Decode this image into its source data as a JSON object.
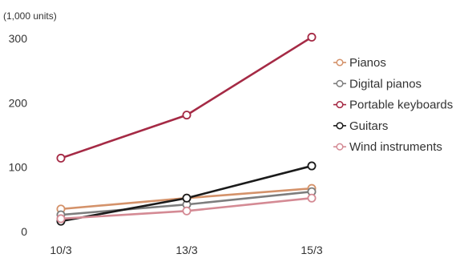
{
  "chart_data": {
    "type": "line",
    "unit_label": "(1,000 units)",
    "categories": [
      "10/3",
      "13/3",
      "15/3"
    ],
    "y_ticks": [
      0,
      100,
      200,
      300
    ],
    "ylim": [
      0,
      300
    ],
    "grid": false,
    "legend_position": "right",
    "series": [
      {
        "name": "Pianos",
        "color": "#d4926a",
        "values": [
          35,
          52,
          67
        ]
      },
      {
        "name": "Digital pianos",
        "color": "#7d7d7d",
        "values": [
          26,
          42,
          62
        ]
      },
      {
        "name": "Portable keyboards",
        "color": "#a52a45",
        "values": [
          114,
          181,
          302
        ]
      },
      {
        "name": "Guitars",
        "color": "#1a1a1a",
        "values": [
          16,
          52,
          102
        ]
      },
      {
        "name": "Wind instruments",
        "color": "#d48a94",
        "values": [
          20,
          32,
          52
        ]
      }
    ]
  }
}
